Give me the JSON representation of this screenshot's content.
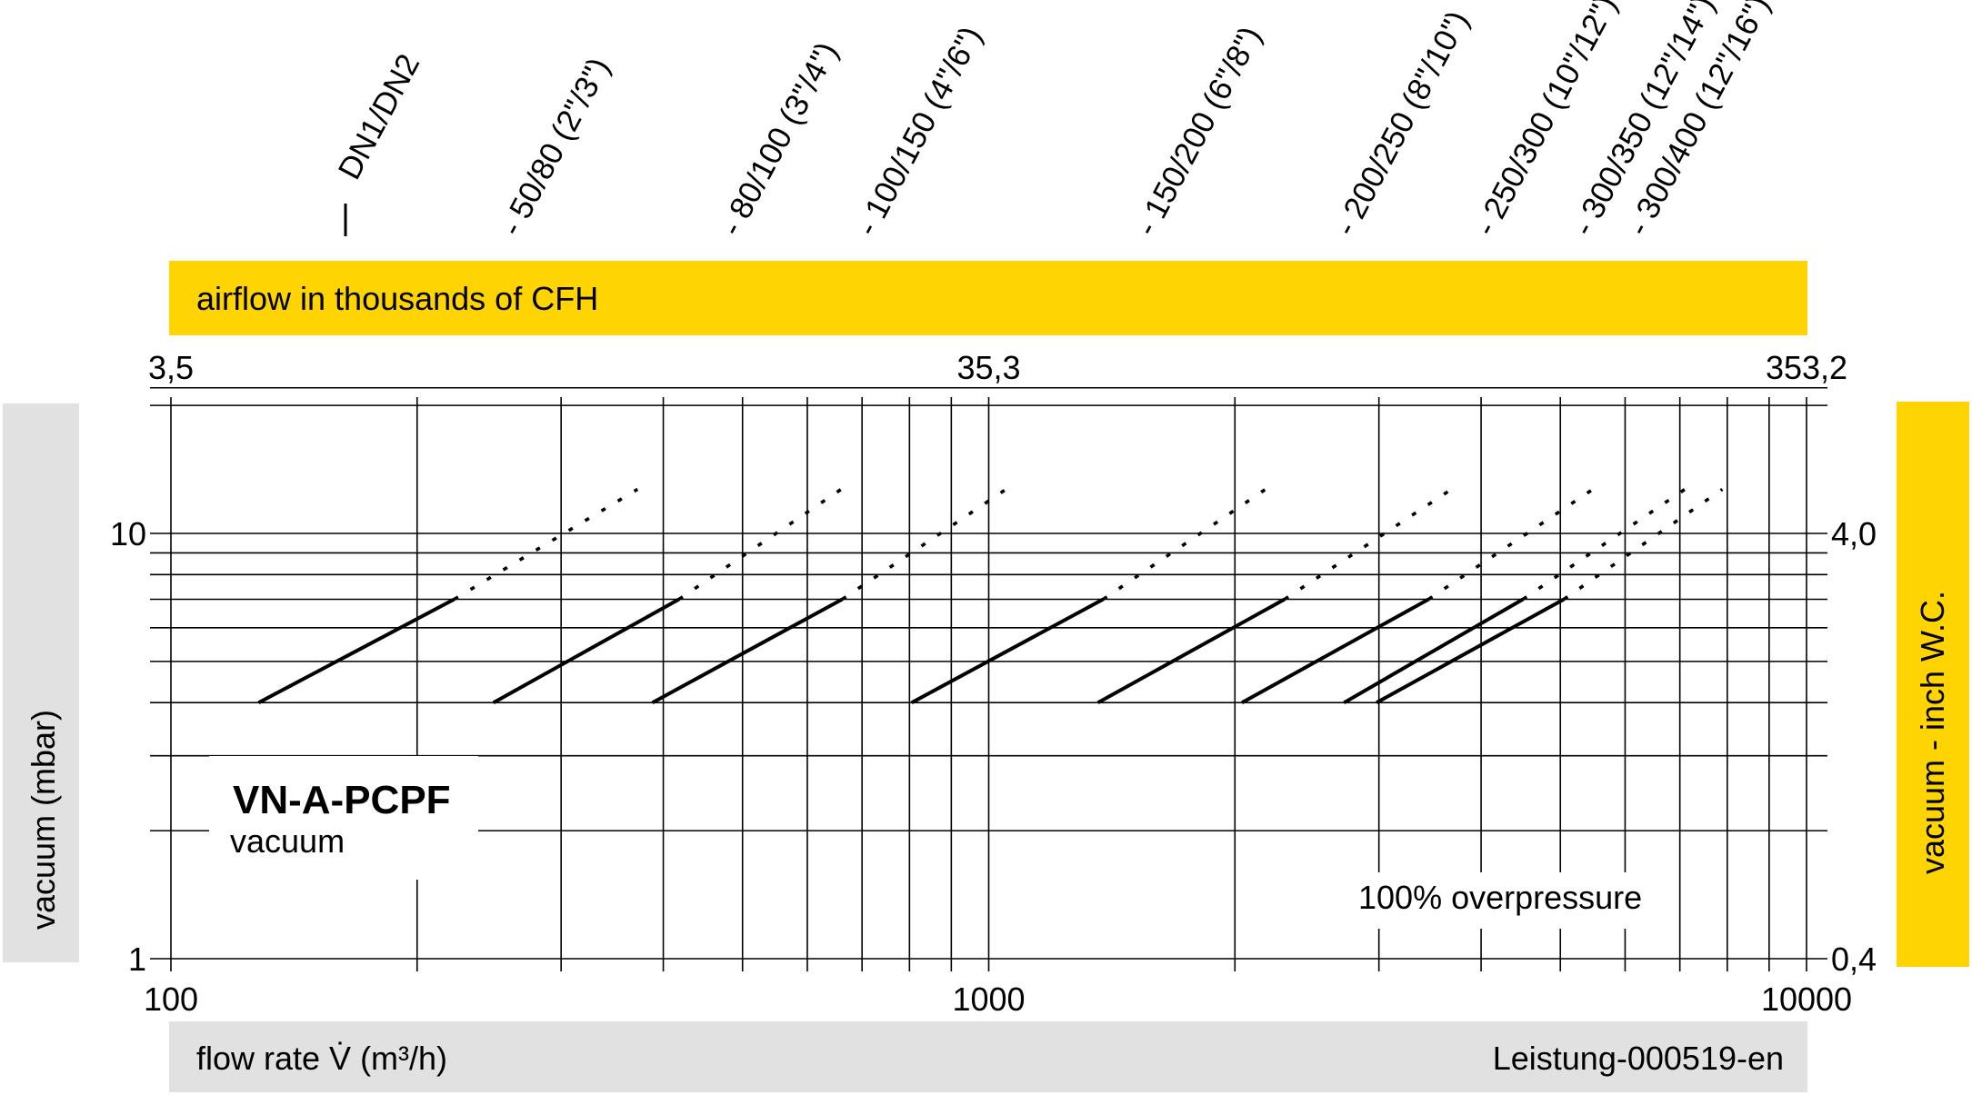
{
  "chart_data": {
    "type": "line",
    "title": "VN-A-PCPF",
    "subtitle": "vacuum",
    "xlabel": "flow rate V̇ (m³/h)",
    "ylabel": "vacuum (mbar)",
    "ylabel_right": "vacuum  - inch W.C.",
    "top_axis_label": "airflow in thousands of CFH",
    "footer_code": "Leistung-000519-en",
    "annotation": "100% overpressure",
    "x_scale": "log",
    "y_scale": "log",
    "xlim": [
      100,
      10000
    ],
    "ylim": [
      1,
      22
    ],
    "grid": true,
    "x_ticks": [
      {
        "value": 100,
        "label": "100"
      },
      {
        "value": 1000,
        "label": "1000"
      },
      {
        "value": 10000,
        "label": "10000"
      }
    ],
    "y_ticks_left": [
      {
        "value": 1,
        "label": "1"
      },
      {
        "value": 10,
        "label": "10"
      }
    ],
    "y_ticks_right": [
      {
        "value": 1,
        "label": "0,4"
      },
      {
        "value": 10,
        "label": "4,0"
      }
    ],
    "top_ticks": [
      {
        "value": 100,
        "label": "3,5"
      },
      {
        "value": 1000,
        "label": "35,3"
      },
      {
        "value": 10000,
        "label": "353,2"
      }
    ],
    "dn_header": "DN1/DN2",
    "x_gridlines": [
      200,
      300,
      400,
      500,
      600,
      700,
      800,
      900,
      2000,
      3000,
      4000,
      5000,
      6000,
      7000,
      8000,
      9000
    ],
    "y_gridlines": [
      2,
      3,
      4,
      5,
      6,
      7,
      8,
      9,
      20
    ],
    "series": [
      {
        "name": "- 50/80 (2\"/3\")",
        "solid": [
          [
            128,
            4.0
          ],
          [
            222,
            7.0
          ]
        ],
        "dotted": [
          [
            222,
            7.0
          ],
          [
            372,
            12.7
          ]
        ],
        "label_x": 266
      },
      {
        "name": "- 80/100 (3\"/4\")",
        "solid": [
          [
            248,
            4.0
          ],
          [
            418,
            7.0
          ]
        ],
        "dotted": [
          [
            418,
            7.0
          ],
          [
            660,
            12.7
          ]
        ],
        "label_x": 494
      },
      {
        "name": "- 100/150 (4\"/6\")",
        "solid": [
          [
            388,
            4.0
          ],
          [
            662,
            7.0
          ]
        ],
        "dotted": [
          [
            662,
            7.0
          ],
          [
            1050,
            12.7
          ]
        ],
        "label_x": 724
      },
      {
        "name": "- 150/200 (6\"/8\")",
        "solid": [
          [
            805,
            4.0
          ],
          [
            1380,
            7.0
          ]
        ],
        "dotted": [
          [
            1380,
            7.0
          ],
          [
            2180,
            12.7
          ]
        ],
        "label_x": 1590
      },
      {
        "name": "- 200/250 (8\"/10\")",
        "solid": [
          [
            1360,
            4.0
          ],
          [
            2300,
            7.0
          ]
        ],
        "dotted": [
          [
            2300,
            7.0
          ],
          [
            3680,
            12.7
          ]
        ],
        "label_x": 2785
      },
      {
        "name": "- 250/300 (10\"/12\")",
        "solid": [
          [
            2040,
            4.0
          ],
          [
            3450,
            7.0
          ]
        ],
        "dotted": [
          [
            3450,
            7.0
          ],
          [
            5480,
            12.7
          ]
        ],
        "label_x": 4130
      },
      {
        "name": "- 300/350 (12\"/14\")",
        "solid": [
          [
            2720,
            4.0
          ],
          [
            4500,
            7.0
          ]
        ],
        "dotted": [
          [
            4500,
            7.0
          ],
          [
            7100,
            12.7
          ]
        ],
        "label_x": 5440
      },
      {
        "name": "- 300/400 (12\"/16\")",
        "solid": [
          [
            2980,
            4.0
          ],
          [
            5050,
            7.0
          ]
        ],
        "dotted": [
          [
            5050,
            7.0
          ],
          [
            7890,
            12.7
          ]
        ],
        "label_x": 6350
      }
    ],
    "colors": {
      "accent_yellow": "#ffd400",
      "band_grey": "#e1e1e1",
      "lines": "#000000"
    }
  }
}
